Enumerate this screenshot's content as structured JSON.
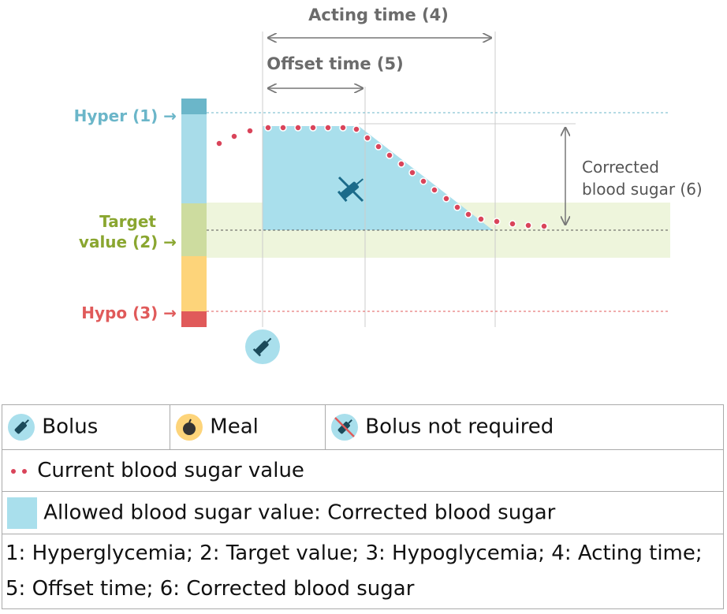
{
  "diagram": {
    "acting_time": "Acting time (4)",
    "offset_time": "Offset time (5)",
    "hyper": "Hyper (1) →",
    "target_line1": "Target",
    "target_line2": "value (2) →",
    "hypo": "Hypo (3) →",
    "corrected_line1": "Corrected",
    "corrected_line2": "blood sugar (6)"
  },
  "legend": {
    "bolus": "Bolus",
    "meal": "Meal",
    "bolus_not_required": "Bolus not required",
    "current": "Current blood sugar value",
    "allowed": "Allowed blood sugar value: Corrected blood sugar",
    "footnote": "1: Hyperglycemia; 2: Target value; 3: Hypoglycemia; 4: Acting time; 5: Offset time; 6: Corrected blood sugar"
  }
}
